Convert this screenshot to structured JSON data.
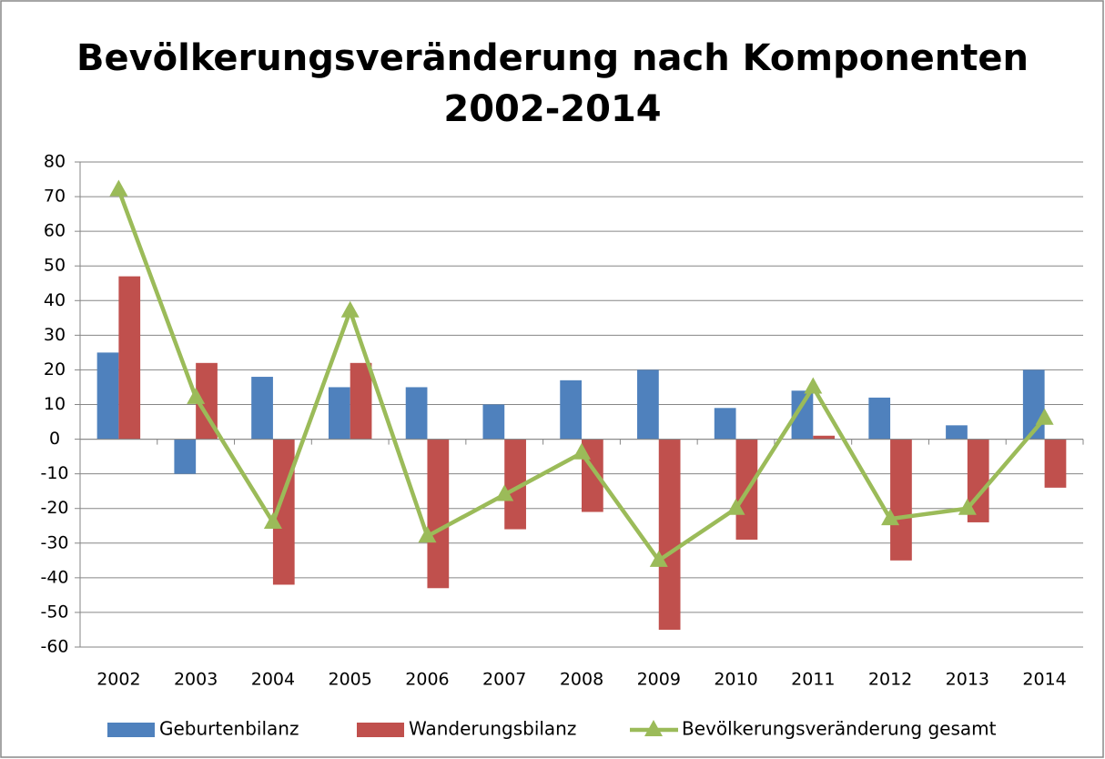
{
  "chart_data": {
    "type": "bar",
    "title": [
      "Bevölkerungsveränderung nach Komponenten",
      "2002-2014"
    ],
    "categories": [
      "2002",
      "2003",
      "2004",
      "2005",
      "2006",
      "2007",
      "2008",
      "2009",
      "2010",
      "2011",
      "2012",
      "2013",
      "2014"
    ],
    "series": [
      {
        "name": "Geburtenbilanz",
        "color": "#4f81bd",
        "values": [
          25,
          -10,
          18,
          15,
          15,
          10,
          17,
          20,
          9,
          14,
          12,
          4,
          20
        ]
      },
      {
        "name": "Wanderungsbilanz",
        "color": "#c0504d",
        "values": [
          47,
          22,
          -42,
          22,
          -43,
          -26,
          -21,
          -55,
          -29,
          1,
          -35,
          -24,
          -14
        ]
      },
      {
        "name": "Bevölkerungsveränderung gesamt",
        "color": "#9bbb59",
        "type": "line",
        "values": [
          72,
          12,
          -24,
          37,
          -28,
          -16,
          -4,
          -35,
          -20,
          15,
          -23,
          -20,
          6
        ]
      }
    ],
    "ylim": [
      -60,
      80
    ],
    "yticks": [
      -60,
      -50,
      -40,
      -30,
      -20,
      -10,
      0,
      10,
      20,
      30,
      40,
      50,
      60,
      70,
      80
    ],
    "grid": true,
    "legend": "bottom"
  }
}
